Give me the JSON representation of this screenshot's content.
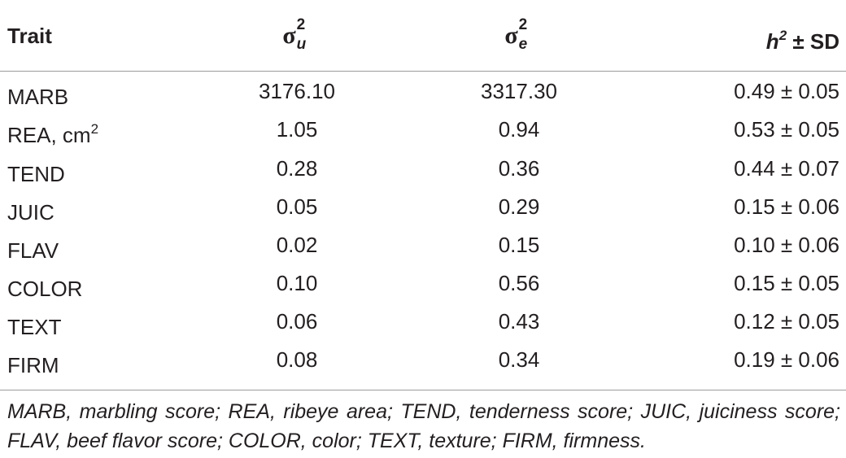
{
  "table": {
    "header": {
      "trait": "Trait",
      "sigma_u": {
        "symbol": "σ",
        "sup": "2",
        "sub": "u"
      },
      "sigma_e": {
        "symbol": "σ",
        "sup": "2",
        "sub": "e"
      },
      "h2": {
        "symbol": "h",
        "sup": "2",
        "rest": " ± SD"
      }
    },
    "rows": [
      {
        "trait": "MARB",
        "trait_sup": "",
        "sigma_u": "3176.10",
        "sigma_e": "3317.30",
        "h2": "0.49 ± 0.05"
      },
      {
        "trait": "REA, cm",
        "trait_sup": "2",
        "sigma_u": "1.05",
        "sigma_e": "0.94",
        "h2": "0.53 ± 0.05"
      },
      {
        "trait": "TEND",
        "trait_sup": "",
        "sigma_u": "0.28",
        "sigma_e": "0.36",
        "h2": "0.44 ± 0.07"
      },
      {
        "trait": "JUIC",
        "trait_sup": "",
        "sigma_u": "0.05",
        "sigma_e": "0.29",
        "h2": "0.15 ± 0.06"
      },
      {
        "trait": "FLAV",
        "trait_sup": "",
        "sigma_u": "0.02",
        "sigma_e": "0.15",
        "h2": "0.10 ± 0.06"
      },
      {
        "trait": "COLOR",
        "trait_sup": "",
        "sigma_u": "0.10",
        "sigma_e": "0.56",
        "h2": "0.15 ± 0.05"
      },
      {
        "trait": "TEXT",
        "trait_sup": "",
        "sigma_u": "0.06",
        "sigma_e": "0.43",
        "h2": "0.12 ± 0.05"
      },
      {
        "trait": "FIRM",
        "trait_sup": "",
        "sigma_u": "0.08",
        "sigma_e": "0.34",
        "h2": "0.19 ± 0.06"
      }
    ],
    "footnote": "MARB, marbling score; REA, ribeye area; TEND, tenderness score; JUIC, juiciness score; FLAV, beef flavor score; COLOR, color; TEXT, texture; FIRM, firmness."
  },
  "colors": {
    "text": "#231f20",
    "rule": "#9b9b9b"
  }
}
